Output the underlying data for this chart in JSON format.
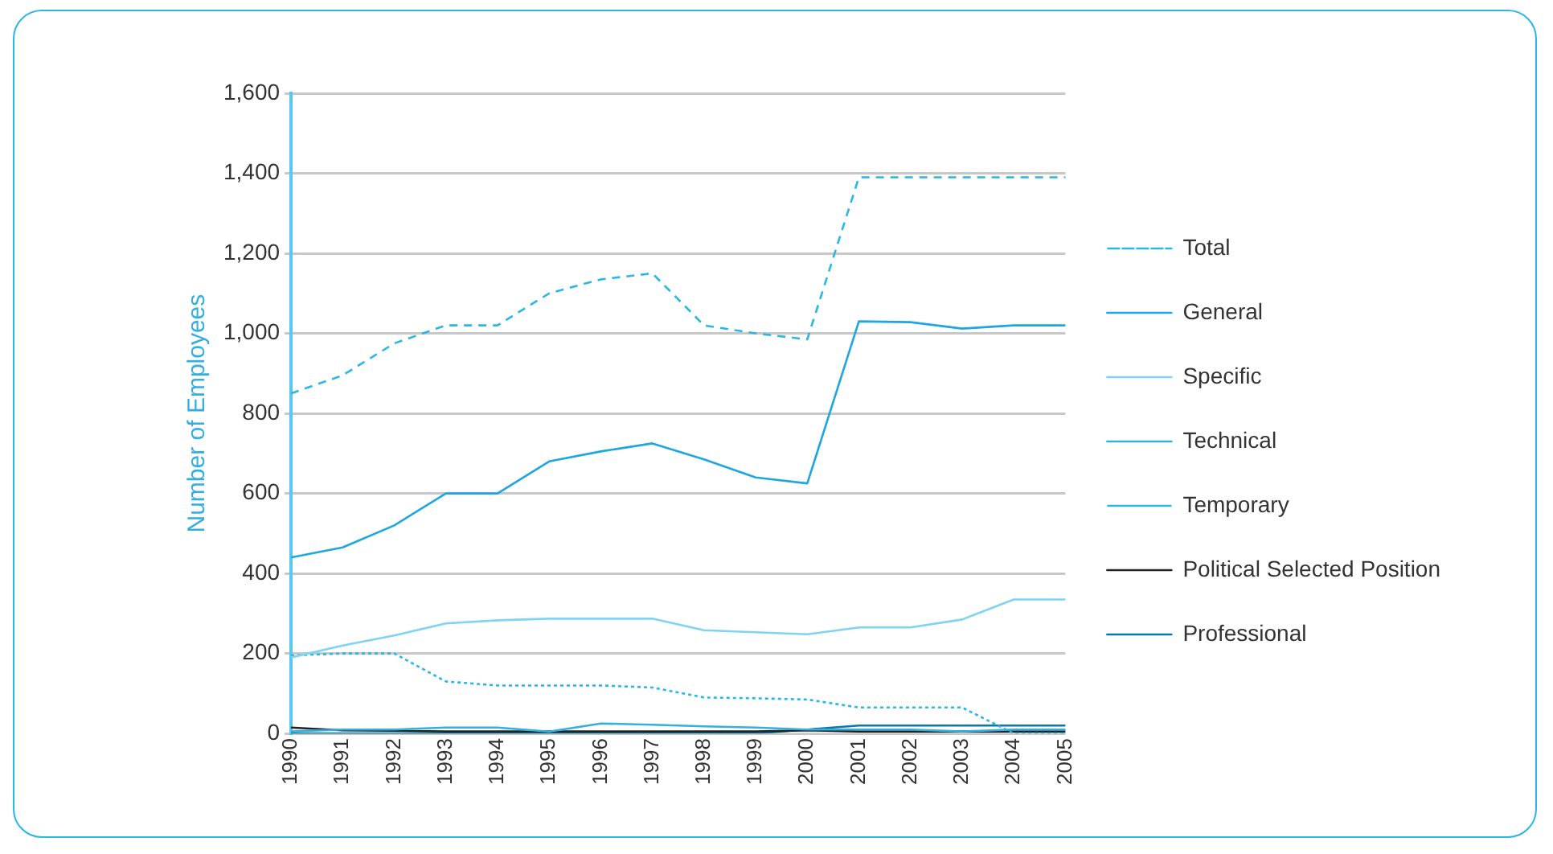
{
  "chart_data": {
    "type": "line",
    "ylabel": "Number of Employees",
    "categories": [
      "1990",
      "1991",
      "1992",
      "1993",
      "1994",
      "1995",
      "1996",
      "1997",
      "1998",
      "1999",
      "2000",
      "2001",
      "2002",
      "2003",
      "2004",
      "2005"
    ],
    "series": [
      {
        "name": "Total",
        "color": "#29b6e8",
        "line_style": "dashed",
        "values": [
          850,
          895,
          975,
          1020,
          1020,
          1100,
          1135,
          1150,
          1020,
          1000,
          985,
          1390,
          1390,
          1390,
          1390,
          1390
        ]
      },
      {
        "name": "General",
        "color": "#1ea6e0",
        "values": [
          440,
          465,
          520,
          600,
          600,
          680,
          705,
          725,
          685,
          640,
          625,
          1030,
          1028,
          1012,
          1020,
          1020
        ]
      },
      {
        "name": "Specific",
        "color": "#7fd3f3",
        "values": [
          190,
          220,
          245,
          275,
          283,
          287,
          287,
          287,
          258,
          253,
          248,
          265,
          265,
          285,
          335,
          335
        ]
      },
      {
        "name": "Technical",
        "color": "#33b0e0",
        "values": [
          5,
          10,
          10,
          15,
          15,
          5,
          25,
          22,
          18,
          15,
          10,
          10,
          10,
          5,
          10,
          10
        ]
      },
      {
        "name": "Temporary",
        "color": "#29b6e8",
        "line_style": "dotted",
        "values": [
          195,
          200,
          200,
          130,
          120,
          120,
          120,
          115,
          90,
          88,
          85,
          65,
          65,
          65,
          0,
          0
        ]
      },
      {
        "name": "Political Selected Position",
        "color": "#222222",
        "values": [
          15,
          8,
          7,
          5,
          5,
          5,
          5,
          5,
          5,
          5,
          8,
          5,
          5,
          5,
          5,
          5
        ]
      },
      {
        "name": "Professional",
        "color": "#0a78a8",
        "values": [
          0,
          0,
          0,
          0,
          0,
          0,
          0,
          0,
          0,
          0,
          10,
          20,
          20,
          20,
          20,
          20
        ]
      }
    ],
    "ylim": [
      0,
      1600
    ],
    "yticks": [
      {
        "value": 0,
        "label": "0"
      },
      {
        "value": 200,
        "label": "200"
      },
      {
        "value": 400,
        "label": "400"
      },
      {
        "value": 600,
        "label": "600"
      },
      {
        "value": 800,
        "label": "800"
      },
      {
        "value": 1000,
        "label": "1,000"
      },
      {
        "value": 1200,
        "label": "1,200"
      },
      {
        "value": 1400,
        "label": "1,400"
      },
      {
        "value": 1600,
        "label": "1,600"
      }
    ],
    "grid": "y",
    "legend": "right",
    "marker": "none",
    "line_style": "solid"
  }
}
